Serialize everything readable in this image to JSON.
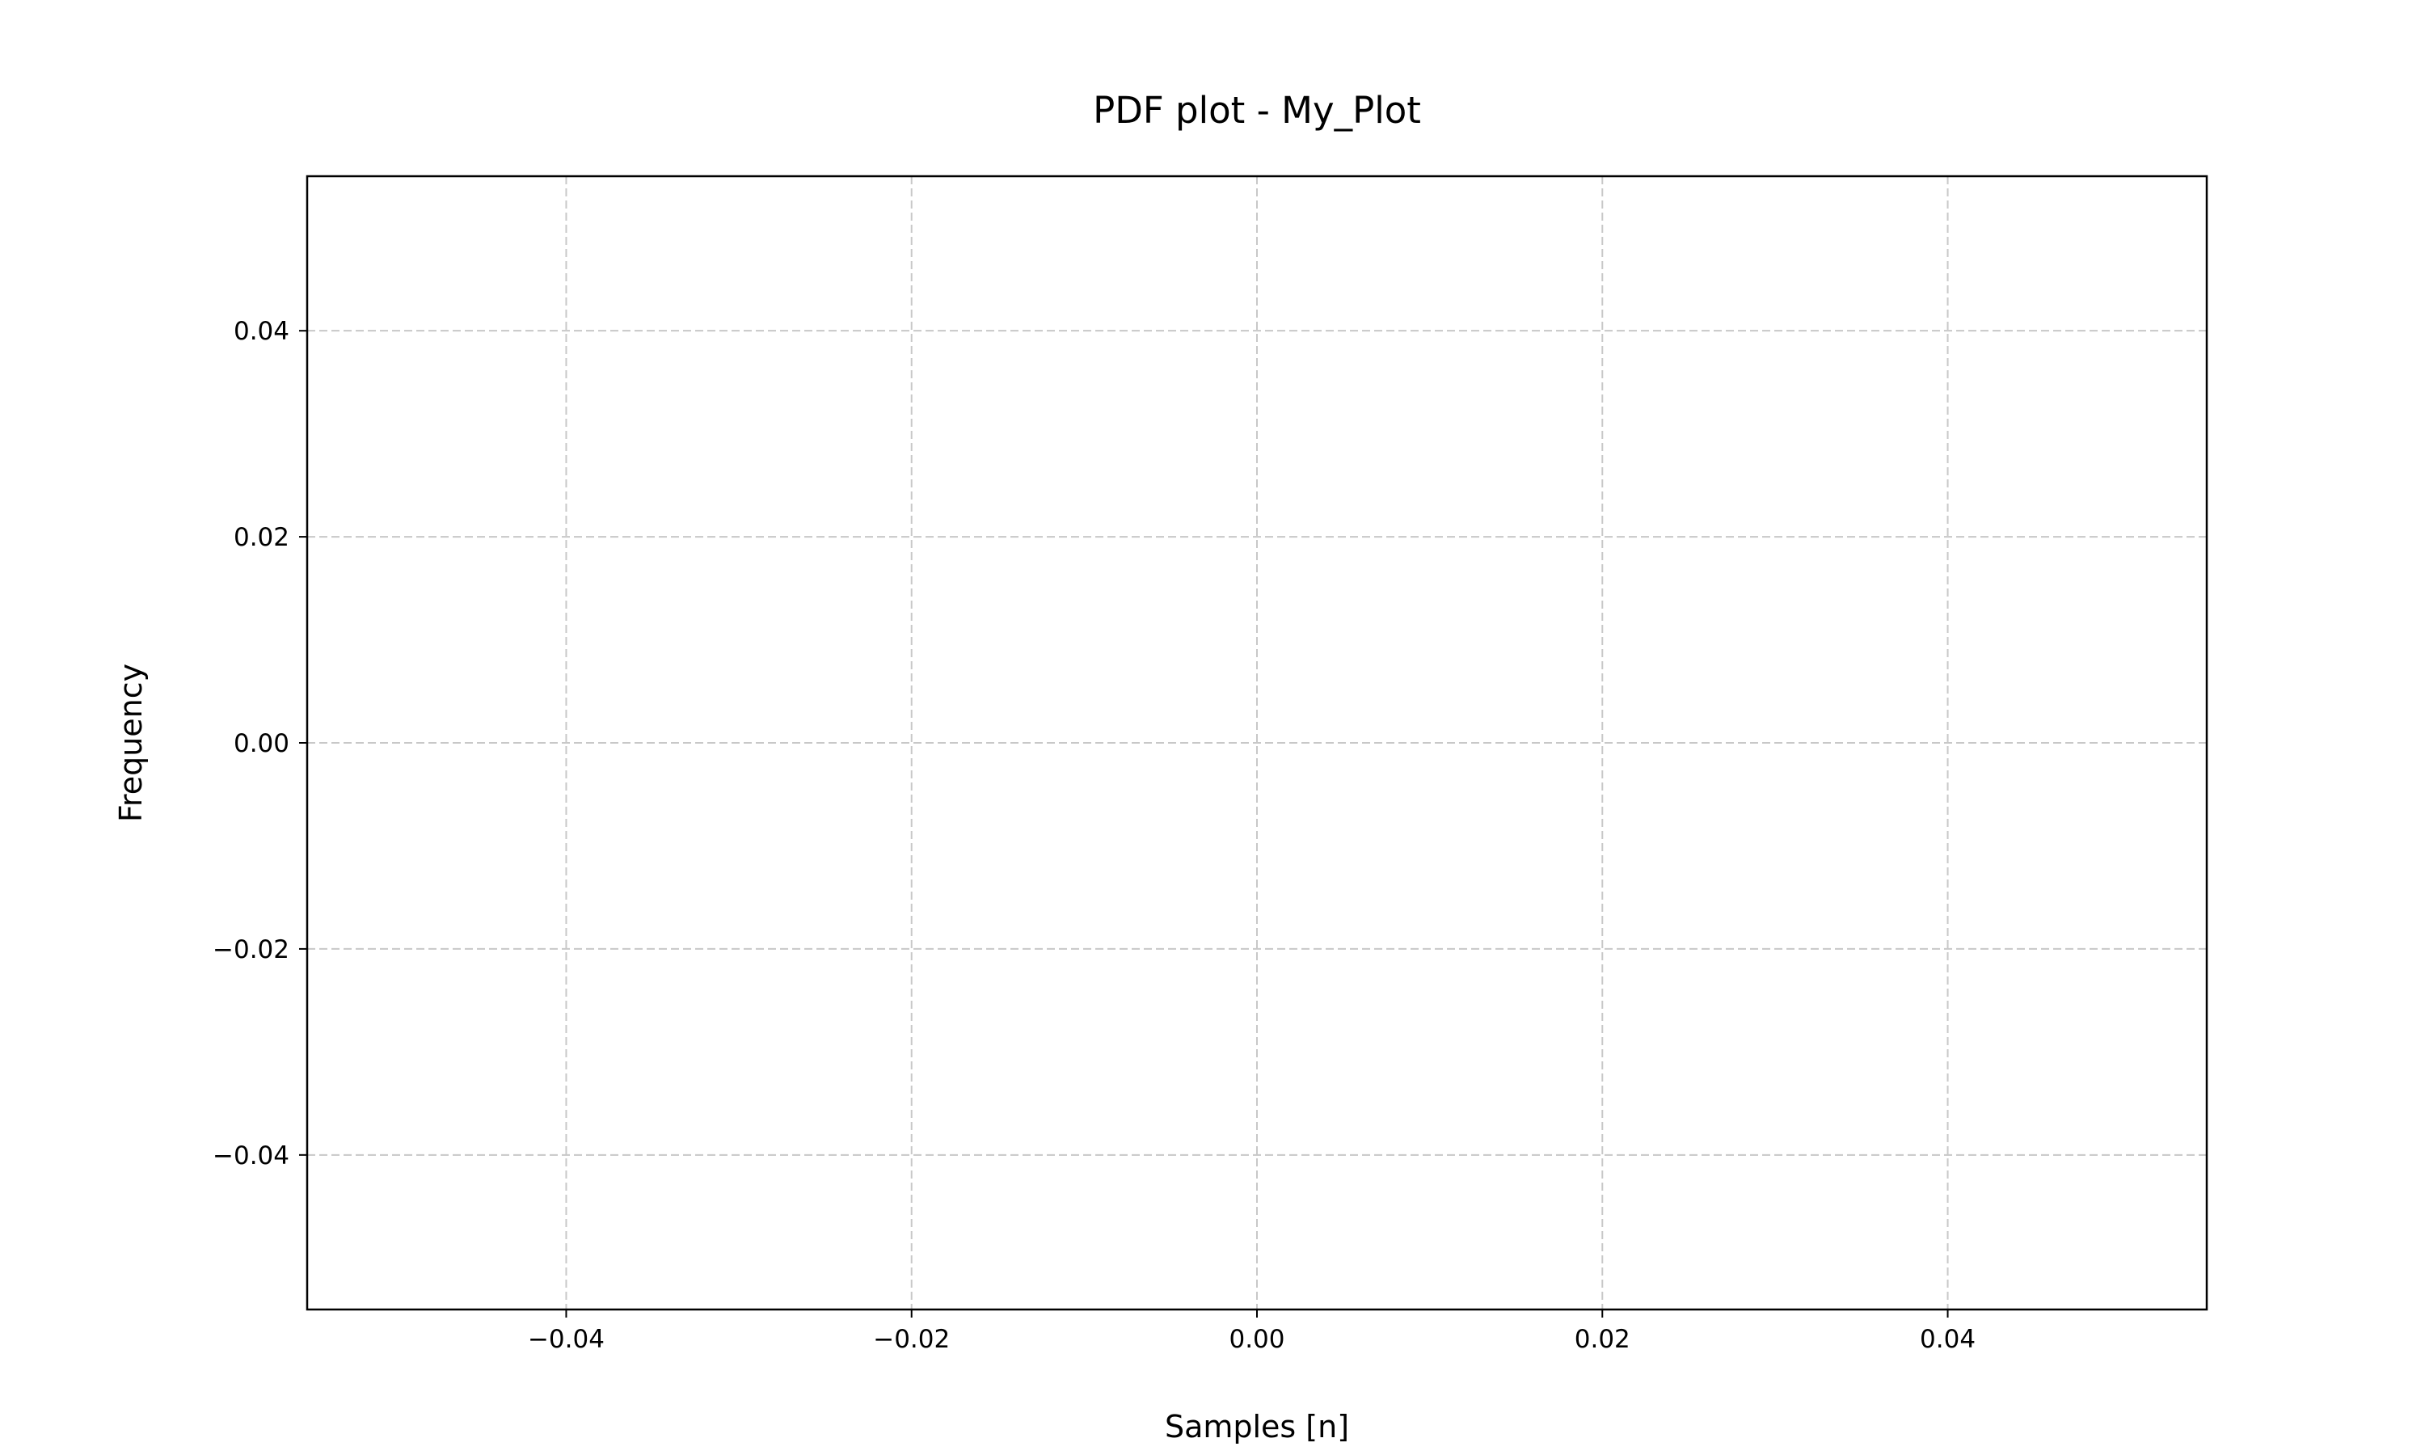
{
  "chart_data": {
    "type": "line",
    "title": "PDF plot - My_Plot",
    "xlabel": "Samples [n]",
    "ylabel": "Frequency",
    "xlim": [
      -0.055,
      0.055
    ],
    "ylim": [
      -0.055,
      0.055
    ],
    "xticks": [
      -0.04,
      -0.02,
      0.0,
      0.02,
      0.04
    ],
    "yticks": [
      -0.04,
      -0.02,
      0.0,
      0.02,
      0.04
    ],
    "xtick_labels": [
      "−0.04",
      "−0.02",
      "0.00",
      "0.02",
      "0.04"
    ],
    "ytick_labels": [
      "−0.04",
      "−0.02",
      "0.00",
      "0.02",
      "0.04"
    ],
    "grid": true,
    "grid_style": "dashed",
    "series": [],
    "colors": {
      "grid": "#c8c8c8",
      "axes": "#000000",
      "background": "#ffffff"
    }
  }
}
